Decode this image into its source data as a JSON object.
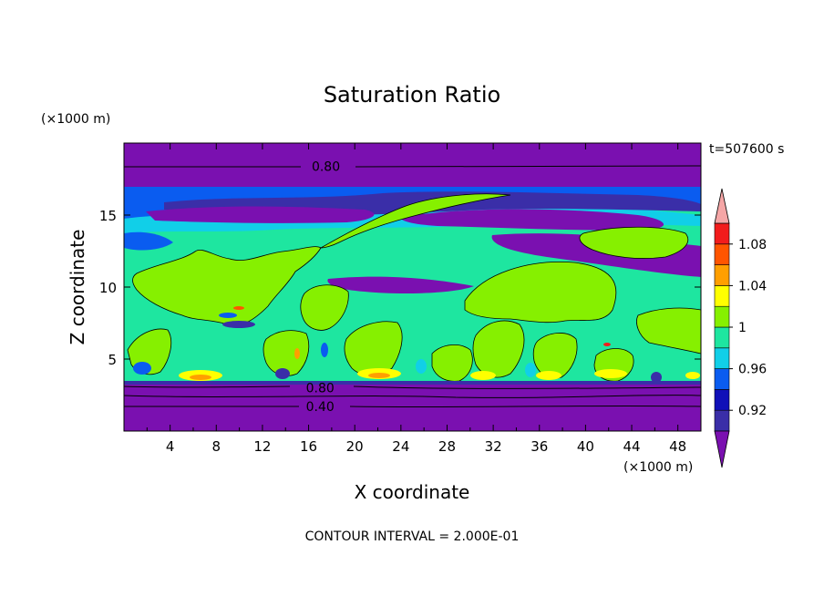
{
  "chart_data": {
    "type": "heatmap",
    "title": "Saturation Ratio",
    "xlabel": "X coordinate",
    "ylabel": "Z coordinate",
    "x_unit": "(×1000 m)",
    "y_unit": "(×1000 m)",
    "time_label": "t=507600 s",
    "footer": "CONTOUR INTERVAL = 2.000E-01",
    "xlim": [
      0,
      50
    ],
    "ylim": [
      0,
      20
    ],
    "x_ticks": [
      4,
      8,
      12,
      16,
      20,
      24,
      28,
      32,
      36,
      40,
      44,
      48
    ],
    "y_ticks": [
      5,
      10,
      15
    ],
    "contour_labels": [
      {
        "text": "0.80",
        "x": 17.5,
        "z": 18.4
      },
      {
        "text": "0.80",
        "x": 17.0,
        "z": 3.0
      },
      {
        "text": "0.40",
        "x": 17.0,
        "z": 1.7
      }
    ],
    "colorbar": {
      "levels": [
        0.9,
        0.92,
        0.94,
        0.96,
        0.98,
        1.0,
        1.02,
        1.04,
        1.06,
        1.08,
        1.1
      ],
      "tick_labels": [
        "0.92",
        "0.96",
        "1",
        "1.04",
        "1.08"
      ],
      "colors": [
        "#3a2ea8",
        "#1010b8",
        "#0a5cf0",
        "#11cfe8",
        "#1ee6a0",
        "#86f000",
        "#ffff00",
        "#ff9f00",
        "#ff5500",
        "#f21c1c"
      ],
      "under_color": "#7a10b0",
      "over_color": "#f5a6a6"
    }
  }
}
